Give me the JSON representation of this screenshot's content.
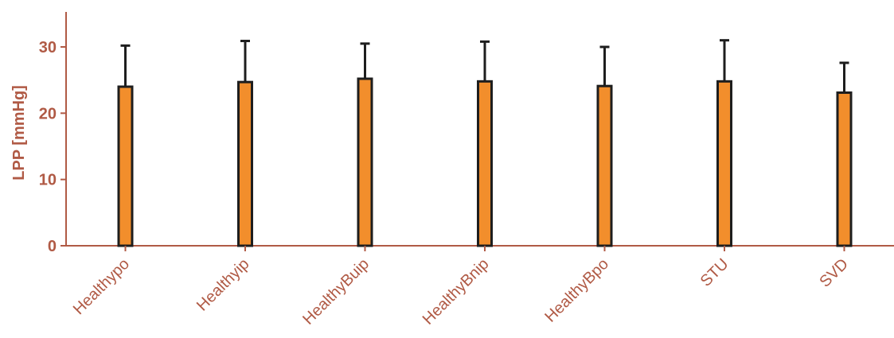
{
  "chart_data": {
    "type": "bar",
    "title": "",
    "xlabel": "",
    "ylabel": "LPP [mmHg]",
    "ylim": [
      0,
      35
    ],
    "yticks": [
      0,
      10,
      20,
      30
    ],
    "categories": [
      "Healthypo",
      "Healthyip",
      "HealthyBuip",
      "HealthyBnip",
      "HealthyBpo",
      "STU",
      "SVD"
    ],
    "values": [
      24.0,
      24.7,
      25.2,
      24.8,
      24.1,
      24.8,
      23.1
    ],
    "error_upper": [
      30.2,
      30.9,
      30.5,
      30.8,
      30.0,
      31.0,
      27.6
    ],
    "grid": false,
    "legend": "none"
  },
  "colors": {
    "bar_fill": "#f28e2c",
    "bar_stroke": "#1e1e1e",
    "axis": "#b05a45",
    "label_text": "#b05a45"
  }
}
